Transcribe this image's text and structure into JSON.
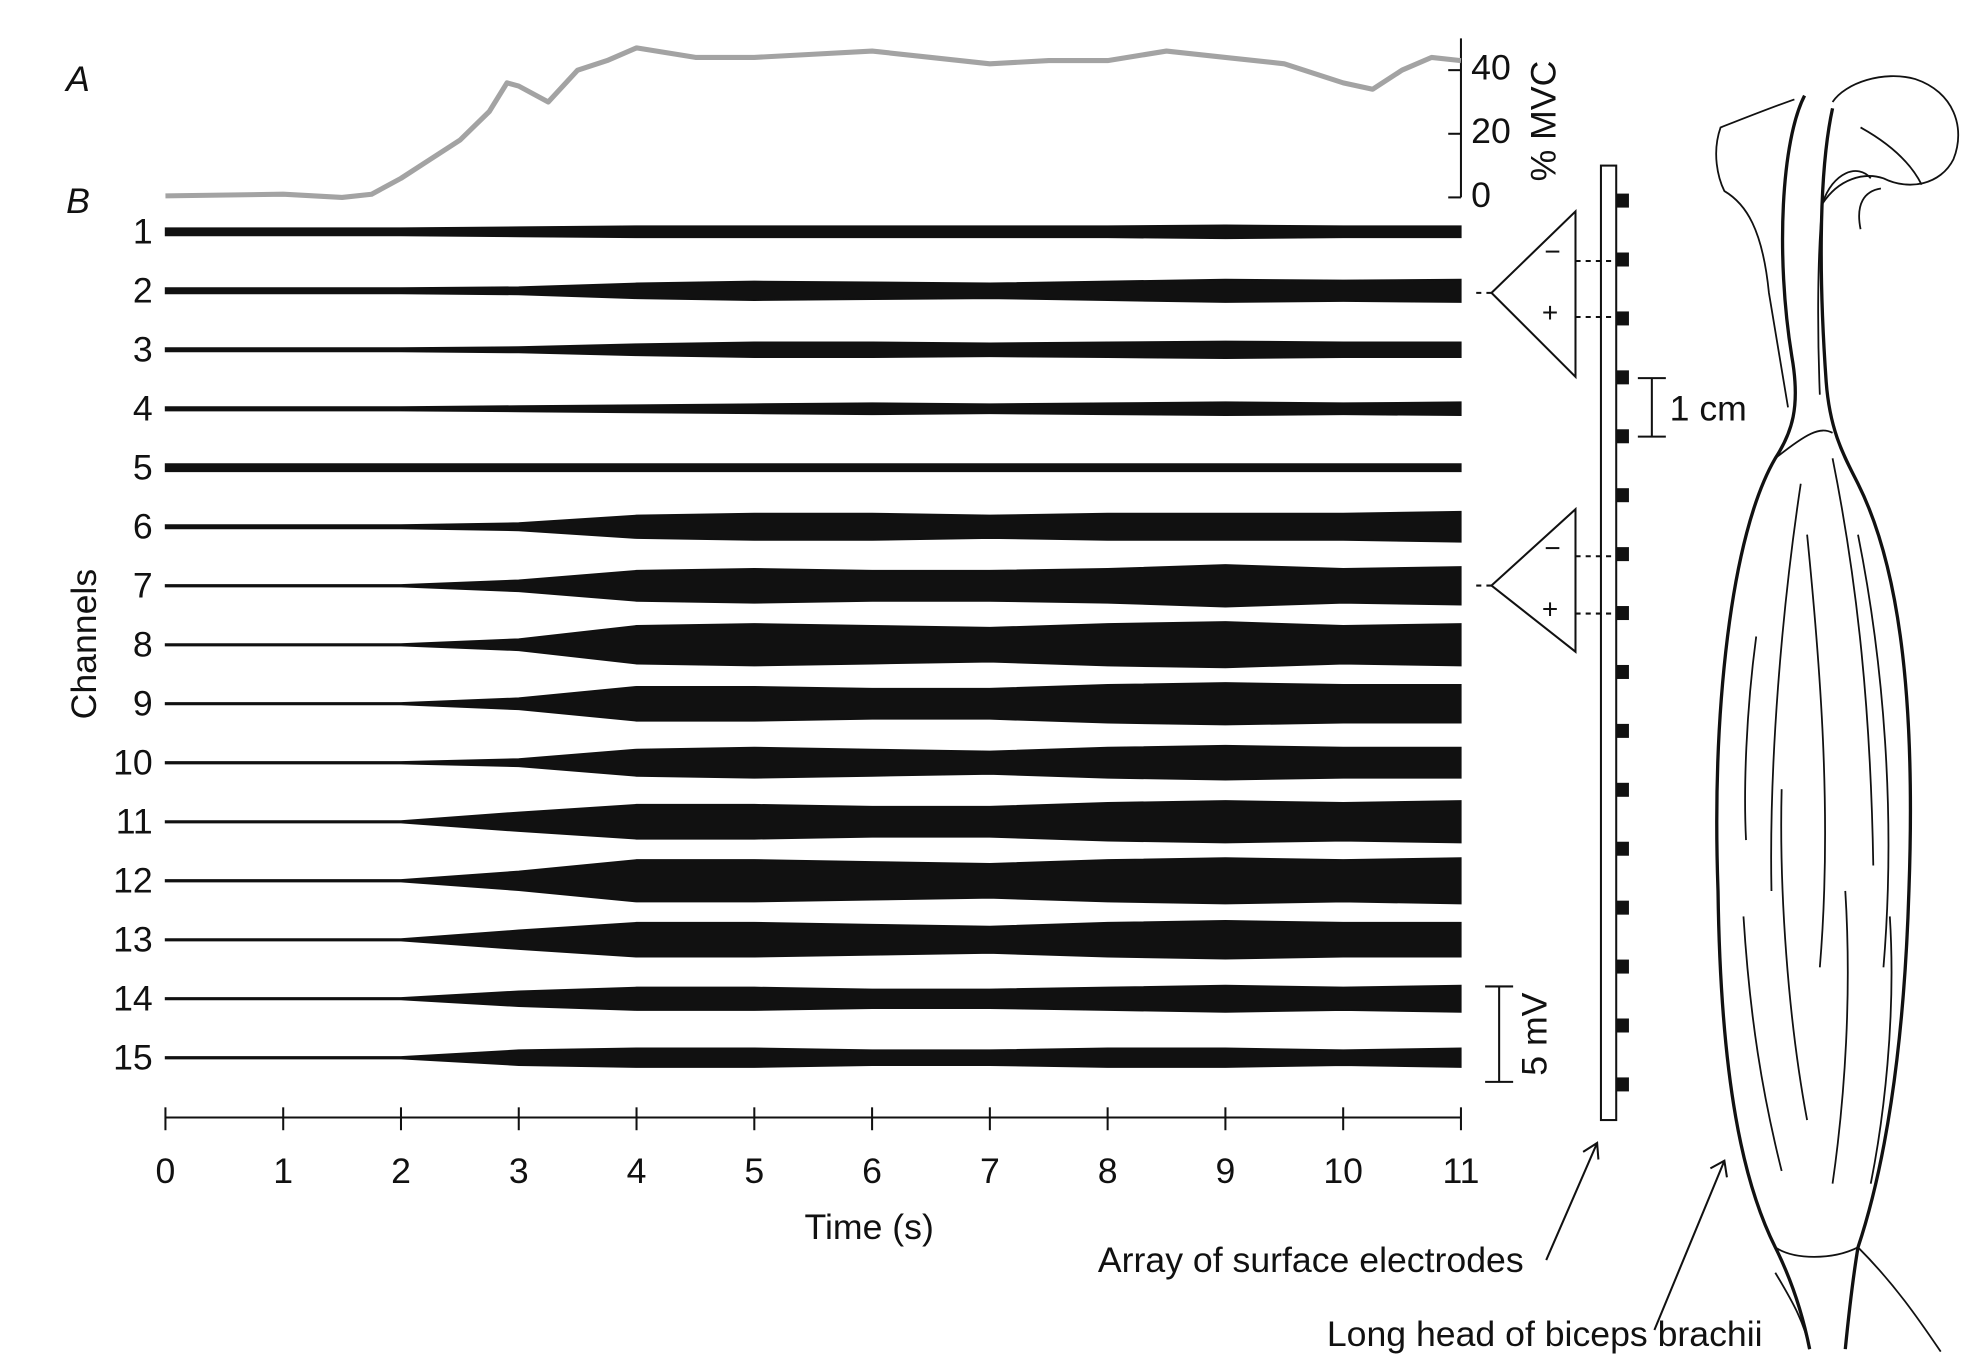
{
  "chart_data": [
    {
      "type": "line",
      "panel": "A",
      "color": "#a3a3a3",
      "x": [
        0,
        1,
        1.5,
        1.75,
        2,
        2.25,
        2.5,
        2.75,
        2.9,
        3,
        3.25,
        3.5,
        3.75,
        4,
        4.5,
        5,
        5.5,
        6,
        6.5,
        7,
        7.5,
        8,
        8.5,
        9,
        9.5,
        10,
        10.25,
        10.5,
        10.75,
        11
      ],
      "values": [
        0.5,
        1,
        0,
        1,
        6,
        12,
        18,
        27,
        36,
        35,
        30,
        40,
        43,
        47,
        44,
        44,
        45,
        46,
        44,
        42,
        43,
        43,
        46,
        44,
        42,
        36,
        34,
        40,
        44,
        43
      ],
      "ylabel": "% MVC",
      "xlim": [
        0,
        11
      ],
      "ylim": [
        0,
        50
      ],
      "yticks": [
        0,
        20,
        40
      ]
    },
    {
      "type": "emg",
      "panel": "B",
      "xlabel": "Time (s)",
      "ylabel": "Channels",
      "xlim": [
        0,
        11
      ],
      "xticks": [
        0,
        1,
        2,
        3,
        4,
        5,
        6,
        7,
        8,
        9,
        10,
        11
      ],
      "x": [
        0,
        1,
        2,
        3,
        4,
        5,
        6,
        7,
        8,
        9,
        10,
        11
      ],
      "categories": [
        "1",
        "2",
        "3",
        "4",
        "5",
        "6",
        "7",
        "8",
        "9",
        "10",
        "11",
        "12",
        "13",
        "14",
        "15"
      ],
      "amplitudes": [
        [
          0.2,
          0.2,
          0.2,
          0.25,
          0.3,
          0.3,
          0.3,
          0.3,
          0.3,
          0.35,
          0.3,
          0.3
        ],
        [
          0.15,
          0.15,
          0.15,
          0.2,
          0.4,
          0.5,
          0.45,
          0.4,
          0.5,
          0.6,
          0.55,
          0.6
        ],
        [
          0.1,
          0.1,
          0.1,
          0.15,
          0.3,
          0.4,
          0.4,
          0.35,
          0.4,
          0.45,
          0.4,
          0.4
        ],
        [
          0.1,
          0.1,
          0.1,
          0.15,
          0.2,
          0.25,
          0.3,
          0.25,
          0.3,
          0.35,
          0.3,
          0.35
        ],
        [
          0.2,
          0.2,
          0.2,
          0.2,
          0.2,
          0.2,
          0.2,
          0.2,
          0.2,
          0.2,
          0.2,
          0.2
        ],
        [
          0.1,
          0.1,
          0.1,
          0.2,
          0.6,
          0.7,
          0.7,
          0.6,
          0.7,
          0.7,
          0.7,
          0.8
        ],
        [
          0.05,
          0.05,
          0.05,
          0.3,
          0.8,
          0.9,
          0.8,
          0.8,
          0.9,
          1.1,
          0.9,
          1.0
        ],
        [
          0.05,
          0.05,
          0.05,
          0.3,
          1.0,
          1.1,
          1.0,
          0.9,
          1.1,
          1.2,
          1.0,
          1.1
        ],
        [
          0.05,
          0.05,
          0.05,
          0.3,
          0.9,
          0.9,
          0.8,
          0.8,
          1.0,
          1.1,
          1.0,
          1.0
        ],
        [
          0.05,
          0.05,
          0.05,
          0.2,
          0.7,
          0.8,
          0.7,
          0.6,
          0.8,
          0.9,
          0.8,
          0.8
        ],
        [
          0.05,
          0.05,
          0.05,
          0.5,
          0.9,
          0.9,
          0.8,
          0.8,
          1.0,
          1.1,
          1.0,
          1.1
        ],
        [
          0.05,
          0.05,
          0.05,
          0.5,
          1.1,
          1.1,
          1.0,
          0.9,
          1.1,
          1.2,
          1.1,
          1.2
        ],
        [
          0.05,
          0.05,
          0.05,
          0.5,
          0.9,
          0.9,
          0.8,
          0.7,
          0.9,
          1.0,
          0.9,
          0.9
        ],
        [
          0.05,
          0.05,
          0.05,
          0.4,
          0.6,
          0.6,
          0.5,
          0.5,
          0.6,
          0.7,
          0.6,
          0.7
        ],
        [
          0.05,
          0.05,
          0.05,
          0.4,
          0.5,
          0.5,
          0.4,
          0.4,
          0.5,
          0.5,
          0.4,
          0.5
        ]
      ],
      "scale_bar": {
        "value": 5,
        "label": "5 mV"
      }
    }
  ],
  "diagram": {
    "spacing": "1 cm",
    "minus": "−",
    "plus": "+",
    "array_label": "Array of surface electrodes",
    "muscle_label": "Long head of biceps brachii"
  }
}
